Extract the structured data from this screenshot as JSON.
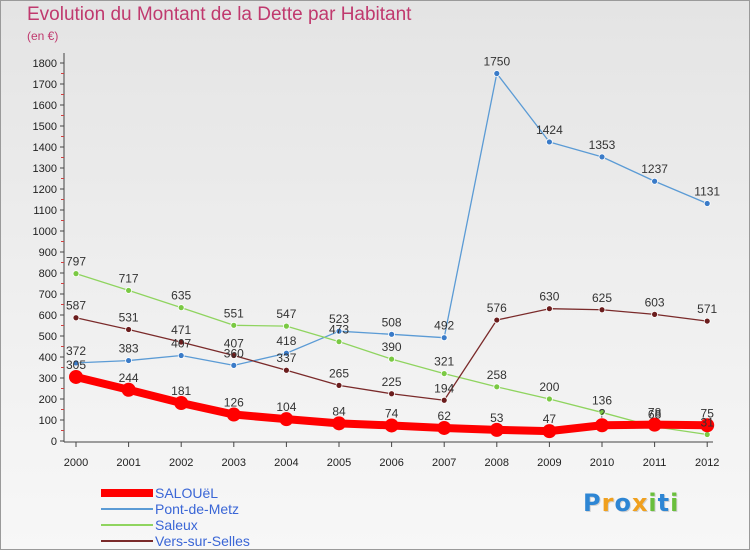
{
  "title": "Evolution du Montant de la Dette par Habitant",
  "subtitle": "(en €)",
  "logo": [
    "P",
    "r",
    "o",
    "x",
    "i",
    "t",
    "i"
  ],
  "chart_data": {
    "type": "line",
    "title": "Evolution du Montant de la Dette par Habitant",
    "unit": "(en €)",
    "categories": [
      "2000",
      "2001",
      "2002",
      "2003",
      "2004",
      "2005",
      "2006",
      "2007",
      "2008",
      "2009",
      "2010",
      "2011",
      "2012"
    ],
    "yticks": [
      0,
      100,
      200,
      300,
      400,
      500,
      600,
      700,
      800,
      900,
      1000,
      1100,
      1200,
      1300,
      1400,
      1500,
      1600,
      1700,
      1800
    ],
    "ylim": [
      0,
      1800
    ],
    "grid": false,
    "legend_position": "bottom-left",
    "series": [
      {
        "name": "Pont-de-Metz",
        "color": "#5b9bd5",
        "point_color": "#3a7bc8",
        "values": [
          372,
          383,
          407,
          360,
          418,
          523,
          508,
          492,
          1750,
          1424,
          1353,
          1237,
          1131
        ]
      },
      {
        "name": "Saleux",
        "color": "#8fd45f",
        "point_color": "#7ac943",
        "values": [
          797,
          717,
          635,
          551,
          547,
          473,
          390,
          321,
          258,
          200,
          136,
          68,
          31
        ]
      },
      {
        "name": "Vers-sur-Selles",
        "color": "#7a2a2a",
        "point_color": "#6b1d1d",
        "values": [
          587,
          531,
          471,
          407,
          337,
          265,
          225,
          194,
          576,
          630,
          625,
          603,
          571
        ]
      },
      {
        "name": "SALOUëL",
        "color": "#ff0000",
        "point_color": "#ff0000",
        "values": [
          305,
          244,
          181,
          126,
          104,
          84,
          74,
          62,
          53,
          47,
          75,
          78,
          75
        ]
      }
    ],
    "label_texts": {
      "Pont-de-Metz": [
        "372",
        "383",
        "407",
        "360",
        "418",
        "523",
        "508",
        "492",
        "1750",
        "1424",
        "1353",
        "1237",
        "1131"
      ],
      "Saleux": [
        "797",
        "717",
        "635",
        "551",
        "547",
        "473",
        "390",
        "321",
        "258",
        "200",
        "136",
        "68",
        "31"
      ],
      "Vers-sur-Selles": [
        "587",
        "531",
        "471",
        "407",
        "337",
        "265",
        "225",
        "194",
        "576",
        "630",
        "625",
        "603",
        "571"
      ],
      "SALOUëL": [
        "305",
        "244",
        "181",
        "126",
        "104",
        "84",
        "74",
        "62",
        "53",
        "47",
        "?",
        "78",
        "75"
      ]
    },
    "legend": [
      "SALOUëL",
      "Pont-de-Metz",
      "Saleux",
      "Vers-sur-Selles"
    ]
  }
}
